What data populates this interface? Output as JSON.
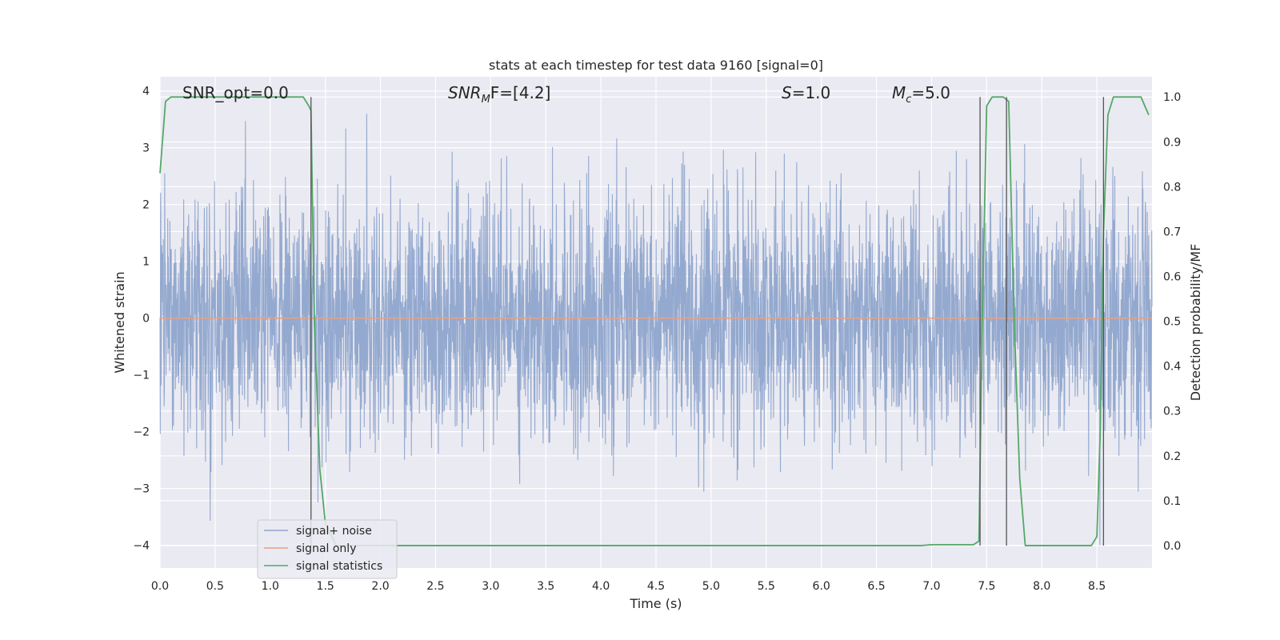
{
  "chart_data": {
    "type": "line",
    "title": "stats at each timestep for test data 9160 [signal=0]",
    "xlabel": "Time (s)",
    "ylabel": "Whitened strain",
    "y2label": "Detection probability/MF",
    "xlim": [
      0.0,
      9.0
    ],
    "ylim": [
      -4.4,
      4.25
    ],
    "y2lim": [
      -0.05,
      1.045
    ],
    "x_ticks": [
      "0.0",
      "0.5",
      "1.0",
      "1.5",
      "2.0",
      "2.5",
      "3.0",
      "3.5",
      "4.0",
      "4.5",
      "5.0",
      "5.5",
      "6.0",
      "6.5",
      "7.0",
      "7.5",
      "8.0",
      "8.5"
    ],
    "y_ticks": [
      "4",
      "3",
      "2",
      "1",
      "0",
      "−1",
      "−2",
      "−3",
      "−4"
    ],
    "y2_ticks": [
      "1.0",
      "0.9",
      "0.8",
      "0.7",
      "0.6",
      "0.5",
      "0.4",
      "0.3",
      "0.2",
      "0.1",
      "0.0"
    ],
    "grid": true,
    "legend_position": "lower-left",
    "annotations": {
      "snr_opt": "SNR_opt=0.0",
      "snr_mf_main": "SNR",
      "snr_mf_sub": "M",
      "snr_mf_rest": "F=[4.2]",
      "s_label": "S",
      "s_value": "=1.0",
      "mc_main": "M",
      "mc_sub": "c",
      "mc_value": "=5.0"
    },
    "series": [
      {
        "name": "signal+ noise",
        "color": "#8fa5cc",
        "description": "whitened noise, roughly symmetric about 0 with std ~1, extremes near ±3.5"
      },
      {
        "name": "signal only",
        "color": "#e8a183",
        "x": [
          0.0,
          9.0
        ],
        "y": [
          0.0,
          0.0
        ]
      },
      {
        "name": "signal statistics",
        "color": "#55a868",
        "axis": "right",
        "x": [
          0.0,
          0.05,
          0.1,
          0.15,
          0.2,
          0.3,
          0.5,
          0.8,
          1.0,
          1.2,
          1.3,
          1.35,
          1.37,
          1.4,
          1.45,
          1.5,
          1.6,
          2.0,
          3.0,
          4.0,
          5.0,
          6.0,
          6.9,
          7.0,
          7.38,
          7.43,
          7.46,
          7.5,
          7.55,
          7.6,
          7.65,
          7.7,
          7.75,
          7.8,
          7.85,
          8.0,
          8.3,
          8.45,
          8.5,
          8.53,
          8.56,
          8.6,
          8.65,
          8.7,
          8.8,
          8.9,
          8.97
        ],
        "y": [
          0.83,
          0.99,
          1.0,
          1.0,
          1.0,
          1.0,
          1.0,
          1.0,
          1.0,
          1.0,
          1.0,
          0.98,
          0.97,
          0.5,
          0.17,
          0.05,
          0.0,
          0.0,
          0.0,
          0.0,
          0.0,
          0.0,
          0.0,
          0.002,
          0.002,
          0.01,
          0.5,
          0.98,
          1.0,
          1.0,
          1.0,
          0.99,
          0.5,
          0.15,
          0.0,
          0.0,
          0.0,
          0.0,
          0.02,
          0.25,
          0.7,
          0.96,
          1.0,
          1.0,
          1.0,
          1.0,
          0.96
        ]
      }
    ],
    "vertical_lines_x": [
      1.37,
      7.44,
      7.68,
      8.56
    ]
  }
}
